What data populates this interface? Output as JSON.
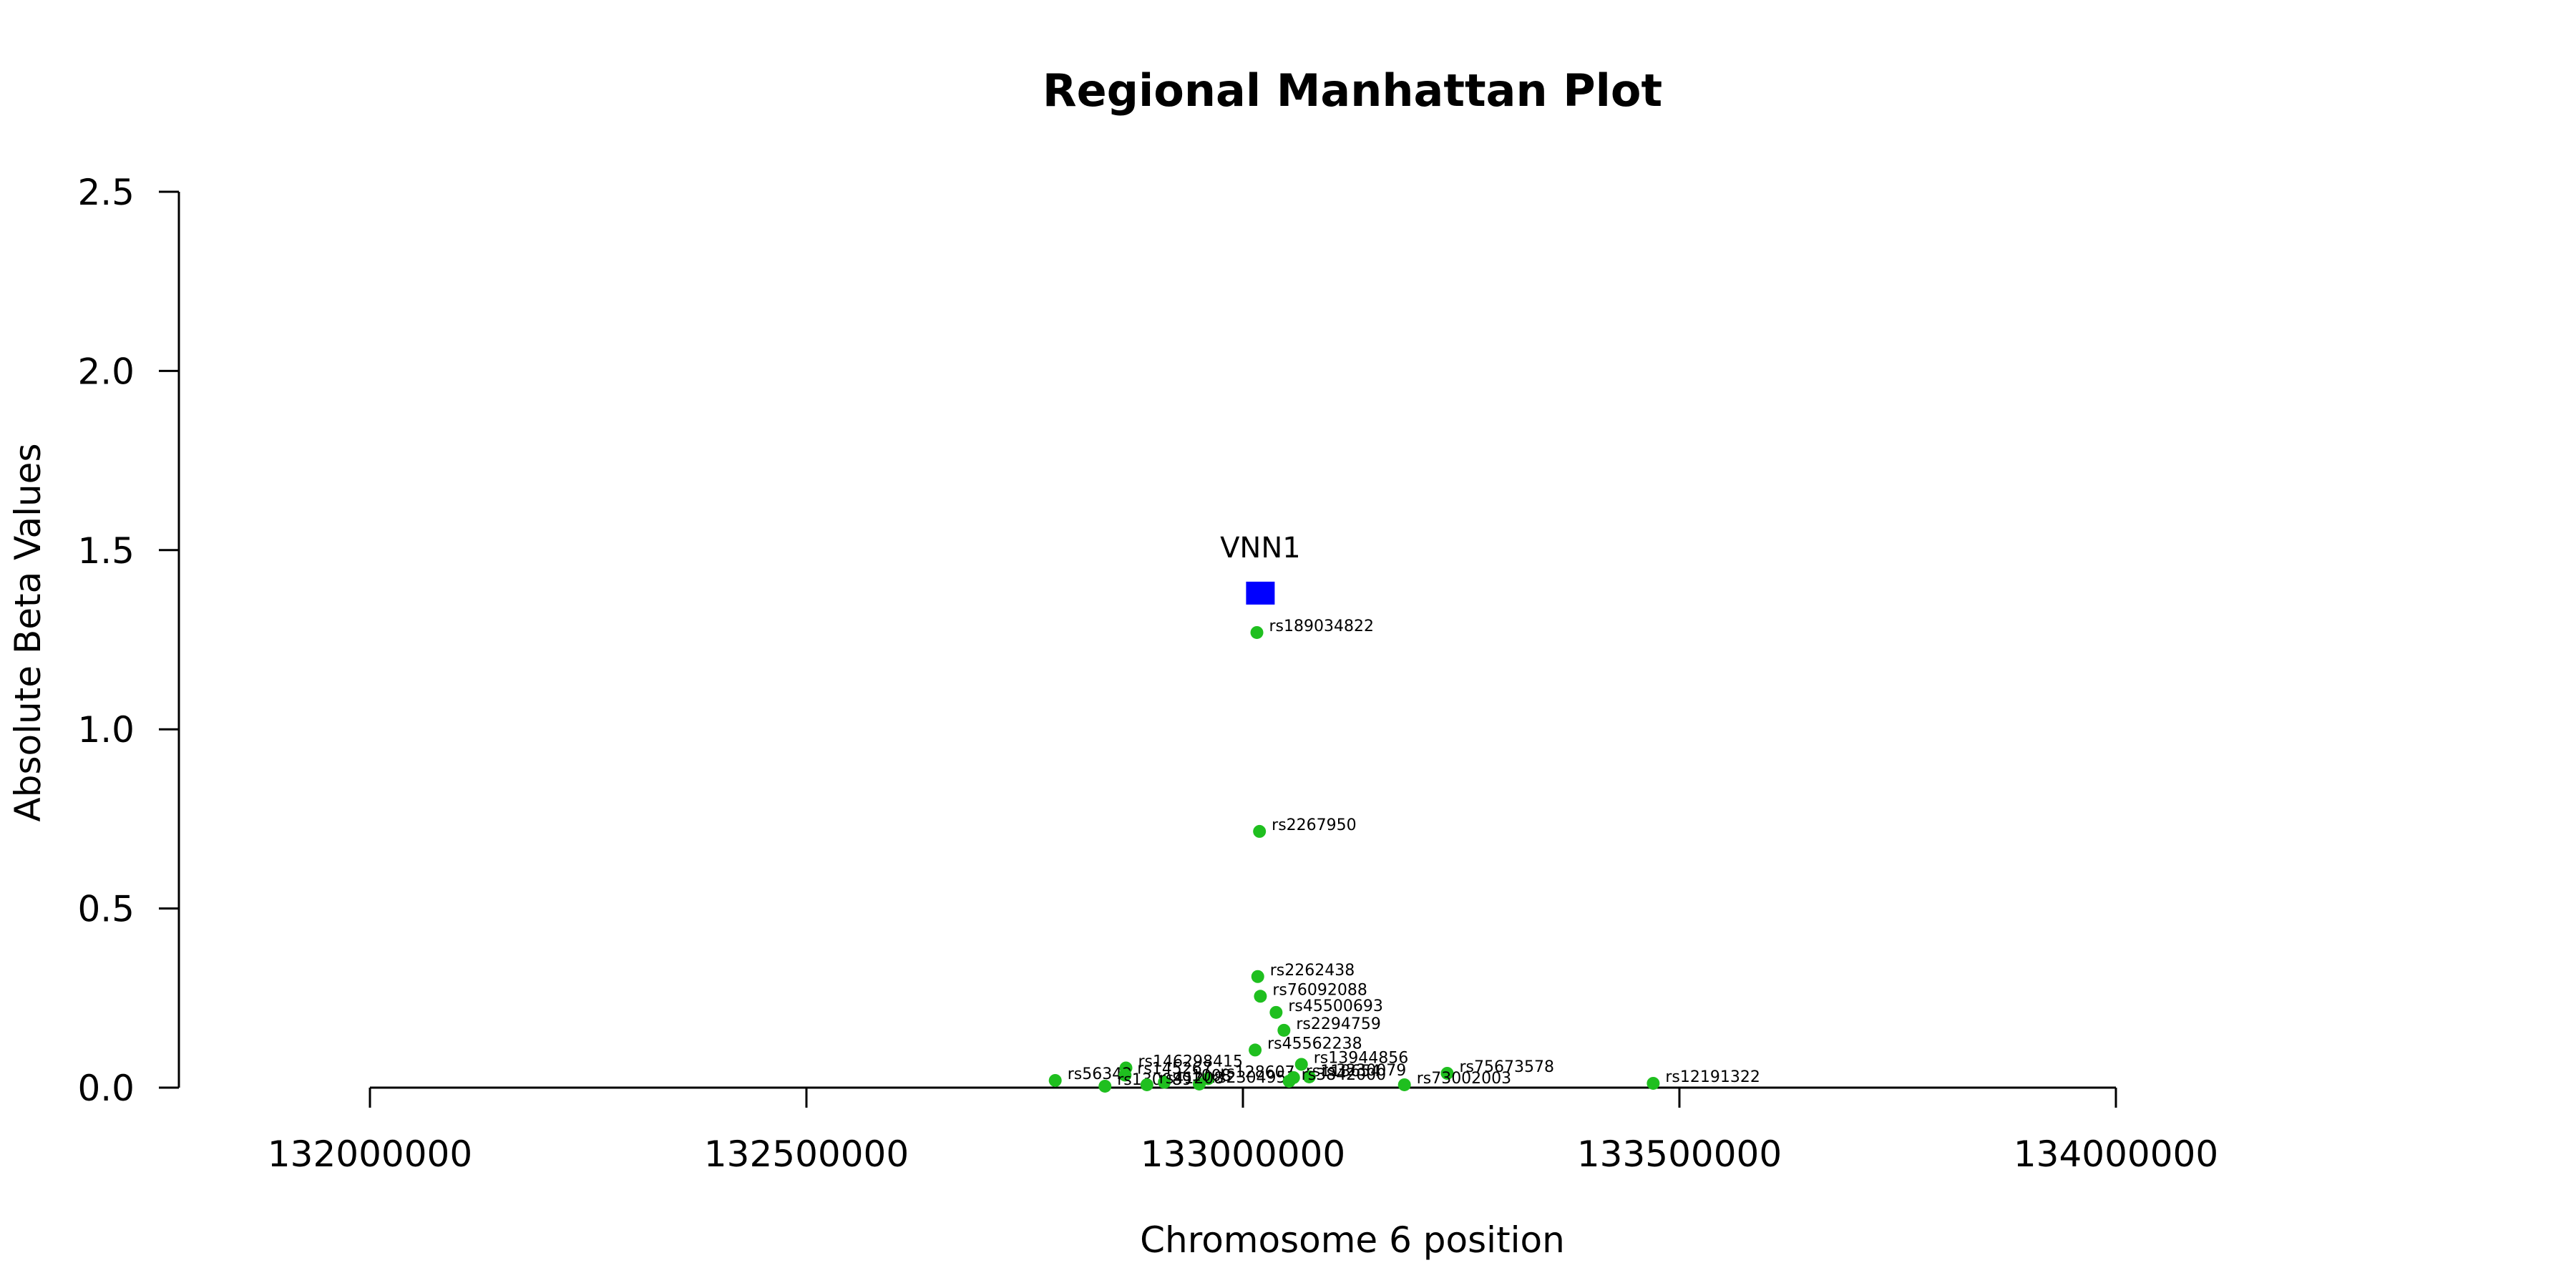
{
  "chart_data": {
    "type": "scatter",
    "title": "Regional Manhattan Plot",
    "xlabel": "Chromosome 6 position",
    "ylabel": "Absolute Beta Values",
    "xlim": [
      132000000,
      134000000
    ],
    "ylim": [
      0,
      2.5
    ],
    "xticks": [
      132000000,
      132500000,
      133000000,
      133500000,
      134000000
    ],
    "xtick_labels": [
      "132000000",
      "132500000",
      "133000000",
      "133500000",
      "134000000"
    ],
    "yticks": [
      0,
      0.5,
      1.0,
      1.5,
      2.0,
      2.5
    ],
    "ytick_labels": [
      "0.0",
      "0.5",
      "1.0",
      "1.5",
      "2.0",
      "2.5"
    ],
    "grid": false,
    "colors": {
      "snp": "#1fbf1f",
      "gene": "#0000ff"
    },
    "gene": {
      "name": "VNN1",
      "x": 133020000,
      "y": 1.38
    },
    "points": [
      {
        "id": "rs189034822",
        "x": 133016000,
        "y": 1.27
      },
      {
        "id": "rs2267950",
        "x": 133019000,
        "y": 0.715
      },
      {
        "id": "rs2262438",
        "x": 133017000,
        "y": 0.31
      },
      {
        "id": "rs76092088",
        "x": 133020000,
        "y": 0.255
      },
      {
        "id": "rs45500693",
        "x": 133038000,
        "y": 0.21
      },
      {
        "id": "rs2294759",
        "x": 133047000,
        "y": 0.16
      },
      {
        "id": "rs45562238",
        "x": 133014000,
        "y": 0.105
      },
      {
        "id": "rs146298415",
        "x": 132866000,
        "y": 0.055
      },
      {
        "id": "rs13944856",
        "x": 133067000,
        "y": 0.065
      },
      {
        "id": "rs75673578",
        "x": 133234000,
        "y": 0.04
      },
      {
        "id": "rs12191322",
        "x": 133470000,
        "y": 0.012
      },
      {
        "id": "rs73002003",
        "x": 133185000,
        "y": 0.008
      },
      {
        "id": "rs56342",
        "x": 132785000,
        "y": 0.02
      },
      {
        "id": "rs145267",
        "x": 132865000,
        "y": 0.035
      },
      {
        "id": "rs1300897",
        "x": 132842000,
        "y": 0.004
      },
      {
        "id": "rs2304951",
        "x": 132950000,
        "y": 0.01
      },
      {
        "id": "rs128607",
        "x": 132960000,
        "y": 0.025
      },
      {
        "id": "rs118654",
        "x": 133058000,
        "y": 0.028
      },
      {
        "id": "rs3230079",
        "x": 133076000,
        "y": 0.03
      },
      {
        "id": "rs3842000",
        "x": 133053000,
        "y": 0.018
      },
      {
        "id": "rs1008",
        "x": 132910000,
        "y": 0.015
      },
      {
        "id": "rs41208",
        "x": 132890000,
        "y": 0.008
      }
    ]
  }
}
